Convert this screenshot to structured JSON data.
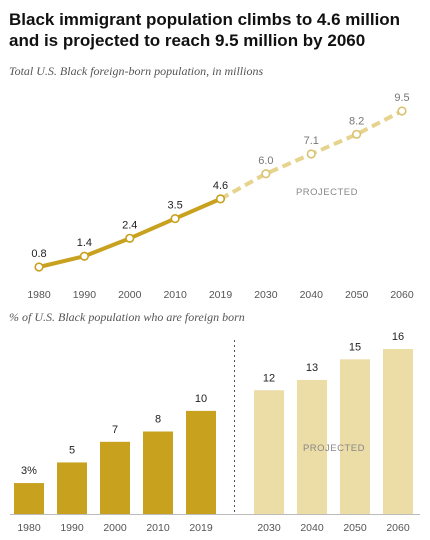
{
  "title": "Black immigrant population climbs to 4.6 million and is projected to reach 9.5 million by 2060",
  "colors": {
    "actual": "#c8a11f",
    "projected": "#e6d38e",
    "projected_bar": "#ecdca6",
    "text": "#222222",
    "muted": "#888888"
  },
  "chart_data": [
    {
      "type": "line",
      "title": "",
      "subtitle": "Total U.S. Black foreign-born population, in millions",
      "annotation": "PROJECTED",
      "x": [
        1980,
        1990,
        2000,
        2010,
        2019,
        2030,
        2040,
        2050,
        2060
      ],
      "x_labels": [
        "1980",
        "1990",
        "2000",
        "2010",
        "2019",
        "2030",
        "2040",
        "2050",
        "2060"
      ],
      "series": [
        {
          "segment": "actual",
          "x": [
            1980,
            1990,
            2000,
            2010,
            2019
          ],
          "values": [
            0.8,
            1.4,
            2.4,
            3.5,
            4.6
          ]
        },
        {
          "segment": "projected",
          "x": [
            2019,
            2030,
            2040,
            2050,
            2060
          ],
          "values": [
            4.6,
            6.0,
            7.1,
            8.2,
            9.5
          ]
        }
      ],
      "data_labels": [
        "0.8",
        "1.4",
        "2.4",
        "3.5",
        "4.6",
        "6.0",
        "7.1",
        "8.2",
        "9.5"
      ],
      "ylim": [
        0,
        10
      ],
      "grid": false
    },
    {
      "type": "bar",
      "title": "",
      "subtitle": "% of U.S. Black population who are foreign born",
      "annotation": "PROJECTED",
      "categories": [
        "1980",
        "1990",
        "2000",
        "2010",
        "2019",
        "2030",
        "2040",
        "2050",
        "2060"
      ],
      "values": [
        3,
        5,
        7,
        8,
        10,
        12,
        13,
        15,
        16
      ],
      "data_labels": [
        "3%",
        "5",
        "7",
        "8",
        "10",
        "12",
        "13",
        "15",
        "16"
      ],
      "projected_from": "2030",
      "ylim": [
        0,
        16
      ],
      "grid": false
    }
  ]
}
